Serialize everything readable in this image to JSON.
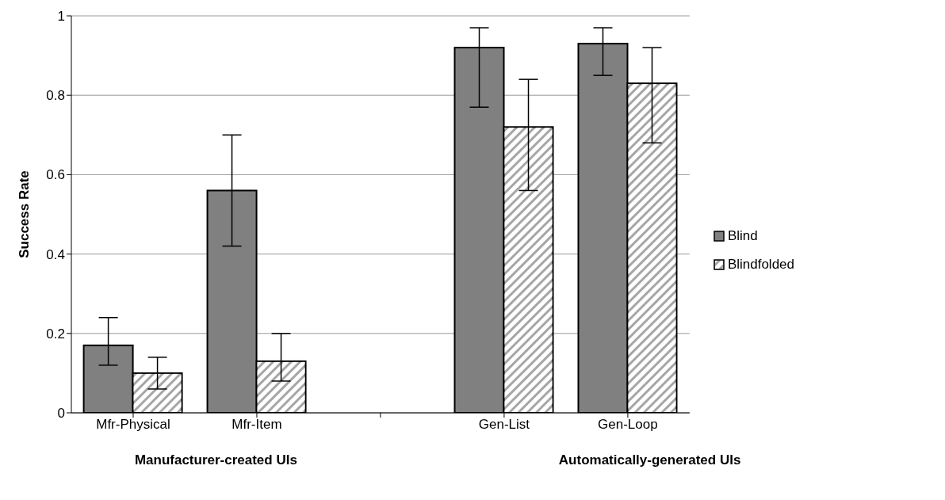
{
  "chart_data": {
    "type": "bar",
    "ylabel": "Success Rate",
    "categories": [
      "Mfr-Physical",
      "Mfr-Item",
      null,
      "Gen-List",
      "Gen-Loop"
    ],
    "series": [
      {
        "name": "Blind",
        "color": "#808080",
        "values": [
          0.17,
          0.56,
          null,
          0.92,
          0.93
        ],
        "errors": [
          [
            0.12,
            0.24
          ],
          [
            0.42,
            0.7
          ],
          null,
          [
            0.77,
            0.97
          ],
          [
            0.85,
            0.97
          ]
        ]
      },
      {
        "name": "Blindfolded",
        "color": "#a6a6a6",
        "values": [
          0.1,
          0.13,
          null,
          0.72,
          0.83
        ],
        "errors": [
          [
            0.06,
            0.14
          ],
          [
            0.08,
            0.2
          ],
          null,
          [
            0.56,
            0.84
          ],
          [
            0.68,
            0.92
          ]
        ]
      }
    ],
    "ylim": [
      0,
      1
    ],
    "yticks": [
      0,
      0.2,
      0.4,
      0.6,
      0.8,
      1
    ],
    "grid": "y",
    "legend": "right",
    "annotations": [
      "Manufacturer-created UIs",
      "Automatically-generated UIs"
    ]
  }
}
